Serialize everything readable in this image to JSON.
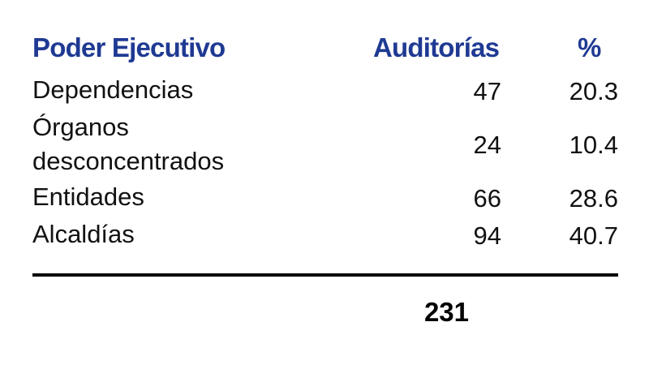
{
  "table": {
    "headers": {
      "category": "Poder Ejecutivo",
      "audits": "Auditorías",
      "percent": "%"
    },
    "rows": [
      {
        "category": "Dependencias",
        "audits": "47",
        "percent": "20.3"
      },
      {
        "category": "Órganos desconcentrados",
        "audits": "24",
        "percent": "10.4"
      },
      {
        "category": "Entidades",
        "audits": "66",
        "percent": "28.6"
      },
      {
        "category": "Alcaldías",
        "audits": "94",
        "percent": "40.7"
      }
    ],
    "total": "231"
  },
  "colors": {
    "header": "#1f3a93",
    "text": "#111111",
    "rule": "#000000"
  }
}
